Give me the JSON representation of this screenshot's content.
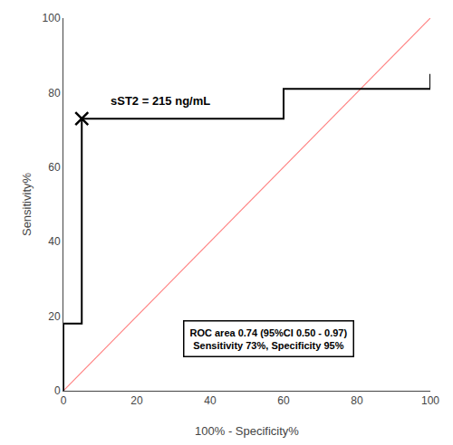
{
  "chart_data": {
    "type": "line",
    "x_label": "100% - Specificity%",
    "y_label": "Sensitivity%",
    "series": [
      {
        "color": "#ff8080",
        "line_style": "solid",
        "x": [
          0,
          100
        ],
        "values": [
          0,
          100
        ]
      },
      {
        "color": "#000000",
        "line_style": "solid",
        "x": [
          0,
          0,
          5,
          5,
          60,
          60,
          100,
          100
        ],
        "values": [
          0,
          18,
          18,
          73,
          73,
          81,
          81,
          85
        ]
      },
      {
        "type": "scatter",
        "marker": "x",
        "color": "#000000",
        "x": [
          5
        ],
        "values": [
          73
        ]
      }
    ],
    "annotations": [
      "sST2 = 215 ng/mL",
      "ROC area 0.74 (95%CI 0.50 - 0.97)",
      "Sensitivity 73%, Specificity 95%"
    ],
    "xlim": [
      0,
      100
    ],
    "ylim": [
      0,
      100
    ],
    "xticks": [
      0,
      20,
      40,
      60,
      80,
      100
    ],
    "yticks": [
      0,
      20,
      40,
      60,
      80,
      100
    ],
    "grid": false
  }
}
